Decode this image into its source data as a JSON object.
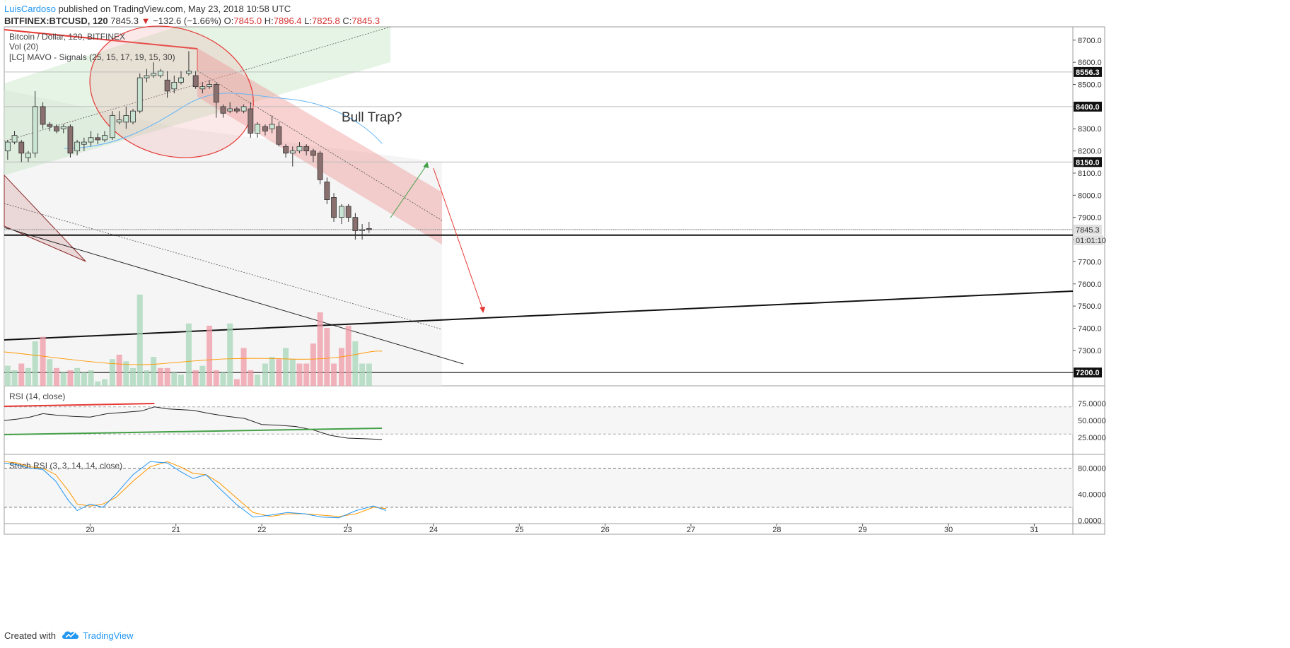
{
  "header": {
    "author": "LuisCardoso",
    "published": " published on TradingView.com, May 23, 2018 10:58 UTC",
    "symbol": "BITFINEX:BTCUSD, 120",
    "last": "7845.3",
    "change_arrow": "▼",
    "change": "−132.6 (−1.66%)",
    "o_label": "O:",
    "o": "7845.0",
    "h_label": "H:",
    "h": "7896.4",
    "l_label": "L:",
    "l": "7825.8",
    "c_label": "C:",
    "c": "7845.3"
  },
  "legend": {
    "main": "Bitcoin / Dollar, 120, BITFINEX",
    "vol": "Vol (20)",
    "mavo": "[LC] MAVO - Signals (25, 15, 17, 19, 15, 30)"
  },
  "annotation": "Bull Trap?",
  "footer": {
    "created": "Created with",
    "brand": "TradingView"
  },
  "colors": {
    "up": "#c9e4d2",
    "down": "#8a6f6f",
    "accent": "#2196f3",
    "bear": "#e53935",
    "bull": "#43a047"
  },
  "chart_data": {
    "type": "candlestick",
    "price_axis": {
      "ylim": [
        7140,
        8760
      ],
      "ticks": [
        "8700.0",
        "8600.0",
        "8500.0",
        "8400.0",
        "8300.0",
        "8200.0",
        "8100.0",
        "8000.0",
        "7900.0",
        "7800.0",
        "7700.0",
        "7600.0",
        "7500.0",
        "7400.0",
        "7300.0",
        "7200.0"
      ]
    },
    "price_labels": [
      {
        "value": 8556.3,
        "text": "8556.3",
        "style": "dark"
      },
      {
        "value": 8400,
        "text": "8400.0",
        "style": "dark"
      },
      {
        "value": 8150,
        "text": "8150.0",
        "style": "dark"
      },
      {
        "value": 7845.3,
        "text": "7845.3",
        "style": "gray"
      },
      {
        "value": 7200,
        "text": "7200.0",
        "style": "dark"
      }
    ],
    "countdown": "01:01:10",
    "horizontal_levels": [
      8556.3,
      8400,
      8150,
      7845.3
    ],
    "thick_levels": [
      7820,
      7200
    ],
    "x_axis": {
      "xlim": [
        19.0,
        31.45
      ],
      "ticks": [
        "20",
        "21",
        "22",
        "23",
        "24",
        "25",
        "26",
        "27",
        "28",
        "29",
        "30",
        "31"
      ],
      "tick_values": [
        20,
        21,
        22,
        23,
        24,
        25,
        26,
        27,
        28,
        29,
        30,
        31
      ]
    },
    "candles": [
      [
        19.04,
        8200,
        8240,
        8160,
        8250
      ],
      [
        19.12,
        8240,
        8270,
        8230,
        8290
      ],
      [
        19.2,
        8240,
        8190,
        8150,
        8250
      ],
      [
        19.28,
        8170,
        8190,
        8150,
        8200
      ],
      [
        19.36,
        8190,
        8400,
        8170,
        8470
      ],
      [
        19.45,
        8400,
        8320,
        8300,
        8420
      ],
      [
        19.53,
        8320,
        8310,
        8290,
        8330
      ],
      [
        19.61,
        8310,
        8290,
        8280,
        8320
      ],
      [
        19.69,
        8300,
        8310,
        8280,
        8320
      ],
      [
        19.77,
        8310,
        8190,
        8170,
        8320
      ],
      [
        19.85,
        8200,
        8240,
        8180,
        8250
      ],
      [
        19.93,
        8230,
        8240,
        8200,
        8260
      ],
      [
        20.01,
        8240,
        8260,
        8220,
        8290
      ],
      [
        20.09,
        8260,
        8250,
        8230,
        8280
      ],
      [
        20.17,
        8250,
        8270,
        8240,
        8290
      ],
      [
        20.26,
        8260,
        8360,
        8250,
        8380
      ],
      [
        20.34,
        8330,
        8340,
        8320,
        8380
      ],
      [
        20.42,
        8330,
        8360,
        8300,
        8400
      ],
      [
        20.5,
        8330,
        8380,
        8320,
        8390
      ],
      [
        20.58,
        8380,
        8530,
        8370,
        8550
      ],
      [
        20.66,
        8530,
        8540,
        8510,
        8570
      ],
      [
        20.74,
        8540,
        8550,
        8530,
        8600
      ],
      [
        20.82,
        8540,
        8560,
        8530,
        8570
      ],
      [
        20.9,
        8520,
        8470,
        8440,
        8560
      ],
      [
        20.98,
        8480,
        8510,
        8460,
        8540
      ],
      [
        21.06,
        8510,
        8530,
        8500,
        8560
      ],
      [
        21.15,
        8550,
        8560,
        8540,
        8650
      ],
      [
        21.23,
        8540,
        8490,
        8480,
        8560
      ],
      [
        21.31,
        8480,
        8490,
        8460,
        8510
      ],
      [
        21.39,
        8490,
        8500,
        8480,
        8520
      ],
      [
        21.47,
        8500,
        8420,
        8350,
        8510
      ],
      [
        21.55,
        8400,
        8370,
        8350,
        8410
      ],
      [
        21.63,
        8380,
        8390,
        8370,
        8420
      ],
      [
        21.71,
        8390,
        8380,
        8370,
        8400
      ],
      [
        21.79,
        8380,
        8400,
        8370,
        8410
      ],
      [
        21.87,
        8390,
        8280,
        8260,
        8420
      ],
      [
        21.95,
        8280,
        8320,
        8260,
        8330
      ],
      [
        22.04,
        8310,
        8290,
        8270,
        8320
      ],
      [
        22.12,
        8300,
        8320,
        8280,
        8360
      ],
      [
        22.2,
        8310,
        8230,
        8220,
        8330
      ],
      [
        22.28,
        8220,
        8190,
        8170,
        8230
      ],
      [
        22.36,
        8190,
        8200,
        8130,
        8220
      ],
      [
        22.44,
        8200,
        8220,
        8190,
        8240
      ],
      [
        22.52,
        8220,
        8200,
        8180,
        8230
      ],
      [
        22.6,
        8200,
        8180,
        8150,
        8210
      ],
      [
        22.68,
        8190,
        8070,
        8050,
        8200
      ],
      [
        22.76,
        8060,
        7980,
        7960,
        8080
      ],
      [
        22.84,
        7990,
        7900,
        7880,
        8010
      ],
      [
        22.93,
        7900,
        7950,
        7870,
        7960
      ],
      [
        23.01,
        7950,
        7900,
        7880,
        7960
      ],
      [
        23.09,
        7900,
        7840,
        7800,
        7920
      ],
      [
        23.17,
        7840,
        7845,
        7800,
        7870
      ],
      [
        23.25,
        7850,
        7845,
        7830,
        7880
      ]
    ],
    "volume": {
      "ylim": [
        0,
        400
      ],
      "values": [
        [
          19.04,
          90,
          1
        ],
        [
          19.12,
          70,
          1
        ],
        [
          19.2,
          100,
          0
        ],
        [
          19.28,
          80,
          1
        ],
        [
          19.36,
          200,
          1
        ],
        [
          19.45,
          220,
          0
        ],
        [
          19.53,
          120,
          1
        ],
        [
          19.61,
          80,
          0
        ],
        [
          19.69,
          60,
          1
        ],
        [
          19.77,
          70,
          0
        ],
        [
          19.85,
          80,
          1
        ],
        [
          19.93,
          60,
          1
        ],
        [
          20.01,
          70,
          1
        ],
        [
          20.09,
          20,
          1
        ],
        [
          20.17,
          30,
          1
        ],
        [
          20.26,
          120,
          1
        ],
        [
          20.34,
          140,
          0
        ],
        [
          20.42,
          110,
          1
        ],
        [
          20.5,
          80,
          1
        ],
        [
          20.58,
          410,
          1
        ],
        [
          20.66,
          70,
          1
        ],
        [
          20.74,
          130,
          1
        ],
        [
          20.82,
          80,
          0
        ],
        [
          20.9,
          80,
          0
        ],
        [
          20.98,
          60,
          1
        ],
        [
          21.06,
          50,
          1
        ],
        [
          21.15,
          280,
          1
        ],
        [
          21.23,
          70,
          0
        ],
        [
          21.31,
          90,
          1
        ],
        [
          21.39,
          270,
          0
        ],
        [
          21.47,
          70,
          0
        ],
        [
          21.55,
          60,
          1
        ],
        [
          21.63,
          280,
          1
        ],
        [
          21.71,
          30,
          0
        ],
        [
          21.79,
          170,
          0
        ],
        [
          21.87,
          70,
          0
        ],
        [
          21.95,
          50,
          1
        ],
        [
          22.04,
          100,
          1
        ],
        [
          22.12,
          130,
          1
        ],
        [
          22.2,
          120,
          0
        ],
        [
          22.28,
          170,
          1
        ],
        [
          22.36,
          120,
          1
        ],
        [
          22.44,
          100,
          0
        ],
        [
          22.52,
          100,
          0
        ],
        [
          22.6,
          190,
          0
        ],
        [
          22.68,
          330,
          0
        ],
        [
          22.76,
          260,
          0
        ],
        [
          22.84,
          100,
          0
        ],
        [
          22.93,
          170,
          0
        ],
        [
          23.01,
          270,
          0
        ],
        [
          23.09,
          200,
          1
        ],
        [
          23.17,
          100,
          1
        ],
        [
          23.25,
          100,
          1
        ]
      ]
    },
    "rsi": {
      "label": "RSI (14, close)",
      "ylim": [
        0,
        100
      ],
      "ticks": [
        "75.0000",
        "50.0000",
        "25.0000"
      ],
      "tick_values": [
        75,
        50,
        25
      ],
      "x": [
        19.0,
        19.15,
        19.3,
        19.45,
        19.6,
        19.8,
        20.0,
        20.2,
        20.4,
        20.6,
        20.75,
        20.9,
        21.05,
        21.2,
        21.4,
        21.6,
        21.8,
        22.0,
        22.2,
        22.4,
        22.6,
        22.8,
        23.0,
        23.2,
        23.4
      ],
      "values": [
        50,
        52,
        55,
        60,
        58,
        56,
        55,
        60,
        62,
        64,
        70,
        67,
        66,
        65,
        60,
        56,
        53,
        44,
        43,
        41,
        36,
        28,
        24,
        23,
        22
      ]
    },
    "stoch_rsi": {
      "label": "Stoch RSI (3, 3, 14, 14, close)",
      "ylim": [
        -5,
        100
      ],
      "ticks": [
        "80.0000",
        "40.0000",
        "0.0000"
      ],
      "tick_values": [
        80,
        40,
        0
      ],
      "k_x": [
        19.0,
        19.15,
        19.3,
        19.45,
        19.6,
        19.75,
        19.85,
        20.0,
        20.15,
        20.3,
        20.5,
        20.7,
        20.9,
        21.05,
        21.2,
        21.35,
        21.5,
        21.7,
        21.9,
        22.1,
        22.3,
        22.5,
        22.7,
        22.9,
        23.1,
        23.3,
        23.45
      ],
      "k": [
        88,
        85,
        80,
        78,
        60,
        30,
        15,
        25,
        20,
        40,
        70,
        90,
        88,
        75,
        64,
        70,
        50,
        25,
        5,
        8,
        12,
        10,
        5,
        4,
        15,
        22,
        15
      ],
      "d_x": [
        19.0,
        19.15,
        19.3,
        19.45,
        19.6,
        19.75,
        19.85,
        20.0,
        20.15,
        20.3,
        20.5,
        20.7,
        20.9,
        21.05,
        21.2,
        21.35,
        21.5,
        21.7,
        21.9,
        22.1,
        22.3,
        22.5,
        22.7,
        22.9,
        23.1,
        23.3,
        23.45
      ],
      "d": [
        90,
        88,
        82,
        80,
        70,
        45,
        25,
        22,
        25,
        35,
        60,
        82,
        90,
        82,
        72,
        70,
        58,
        35,
        12,
        6,
        10,
        10,
        8,
        6,
        10,
        20,
        18
      ]
    }
  }
}
